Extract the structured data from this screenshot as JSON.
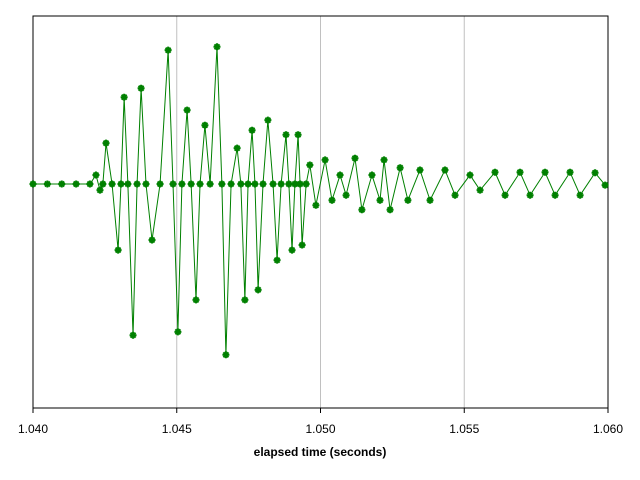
{
  "chart_data": {
    "type": "line",
    "x_label": "elapsed time (seconds)",
    "xlim": [
      1.04,
      1.06
    ],
    "xticks": [
      {
        "value": 1.04,
        "label": "1.040"
      },
      {
        "value": 1.045,
        "label": "1.045"
      },
      {
        "value": 1.05,
        "label": "1.050"
      },
      {
        "value": 1.055,
        "label": "1.055"
      },
      {
        "value": 1.06,
        "label": "1.060"
      }
    ],
    "ylim": [
      -4,
      3
    ],
    "grid": true,
    "series": [
      {
        "color": "#008000",
        "x": [
          1.04,
          1.0405,
          1.041,
          1.0415,
          1.04198,
          1.04219,
          1.04233,
          1.04243,
          1.04254,
          1.04275,
          1.04296,
          1.04306,
          1.04317,
          1.0433,
          1.04348,
          1.04362,
          1.04376,
          1.04393,
          1.04414,
          1.04442,
          1.0447,
          1.04487,
          1.04504,
          1.04518,
          1.04536,
          1.0455,
          1.04567,
          1.04581,
          1.04598,
          1.04616,
          1.0464,
          1.04657,
          1.04671,
          1.04689,
          1.0471,
          1.04723,
          1.04737,
          1.04748,
          1.04762,
          1.04772,
          1.04783,
          1.048,
          1.04817,
          1.04835,
          1.04849,
          1.04863,
          1.0488,
          1.0489,
          1.04901,
          1.04911,
          1.04922,
          1.04929,
          1.04936,
          1.0495,
          1.04963,
          1.04984,
          1.05016,
          1.0504,
          1.05068,
          1.05089,
          1.0512,
          1.05144,
          1.05179,
          1.05207,
          1.05221,
          1.05242,
          1.05277,
          1.05304,
          1.05346,
          1.05381,
          1.05433,
          1.05468,
          1.0552,
          1.05555,
          1.05607,
          1.05642,
          1.05694,
          1.05729,
          1.05781,
          1.05816,
          1.05868,
          1.05903,
          1.05955,
          1.0599
        ],
        "values": [
          0,
          0,
          0,
          0,
          0,
          0.16,
          -0.11,
          0,
          0.73,
          0,
          -1.18,
          0,
          1.55,
          0,
          -2.7,
          0,
          1.71,
          0,
          -1.0,
          0,
          2.39,
          0,
          -2.64,
          0,
          1.32,
          0,
          -2.07,
          0,
          1.05,
          0,
          2.45,
          0,
          -3.05,
          0,
          0.64,
          0,
          -2.07,
          0,
          0.96,
          0,
          -1.89,
          0,
          1.14,
          0,
          -1.36,
          0,
          0.88,
          0,
          -1.18,
          0,
          0.88,
          0,
          -1.09,
          0,
          0.34,
          -0.38,
          0.43,
          -0.29,
          0.16,
          -0.2,
          0.46,
          -0.46,
          0.16,
          -0.29,
          0.43,
          -0.46,
          0.29,
          -0.29,
          0.25,
          -0.29,
          0.25,
          -0.2,
          0.16,
          -0.11,
          0.21,
          -0.2,
          0.21,
          -0.2,
          0.21,
          -0.2,
          0.21,
          -0.2,
          0.2,
          -0.02
        ]
      }
    ]
  }
}
